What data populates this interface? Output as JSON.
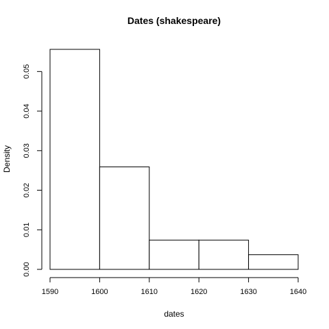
{
  "chart_data": {
    "type": "bar",
    "title": "Dates (shakespeare)",
    "xlabel": "dates",
    "ylabel": "Density",
    "bins": [
      {
        "start": 1590,
        "end": 1600,
        "density": 0.0556
      },
      {
        "start": 1600,
        "end": 1610,
        "density": 0.0259
      },
      {
        "start": 1610,
        "end": 1620,
        "density": 0.0074
      },
      {
        "start": 1620,
        "end": 1630,
        "density": 0.0074
      },
      {
        "start": 1630,
        "end": 1640,
        "density": 0.0037
      }
    ],
    "xlim": [
      1590,
      1640
    ],
    "ylim": [
      0,
      0.0556
    ],
    "x_ticks": [
      1590,
      1600,
      1610,
      1620,
      1630,
      1640
    ],
    "x_tick_labels": [
      "1590",
      "1600",
      "1610",
      "1620",
      "1630",
      "1640"
    ],
    "y_ticks": [
      0,
      0.01,
      0.02,
      0.03,
      0.04,
      0.05
    ],
    "y_tick_labels": [
      "0.00",
      "0.01",
      "0.02",
      "0.03",
      "0.04",
      "0.05"
    ],
    "grid": false,
    "legend": "none",
    "colors": {
      "bar_fill": "#ffffff",
      "bar_stroke": "#000000"
    }
  }
}
